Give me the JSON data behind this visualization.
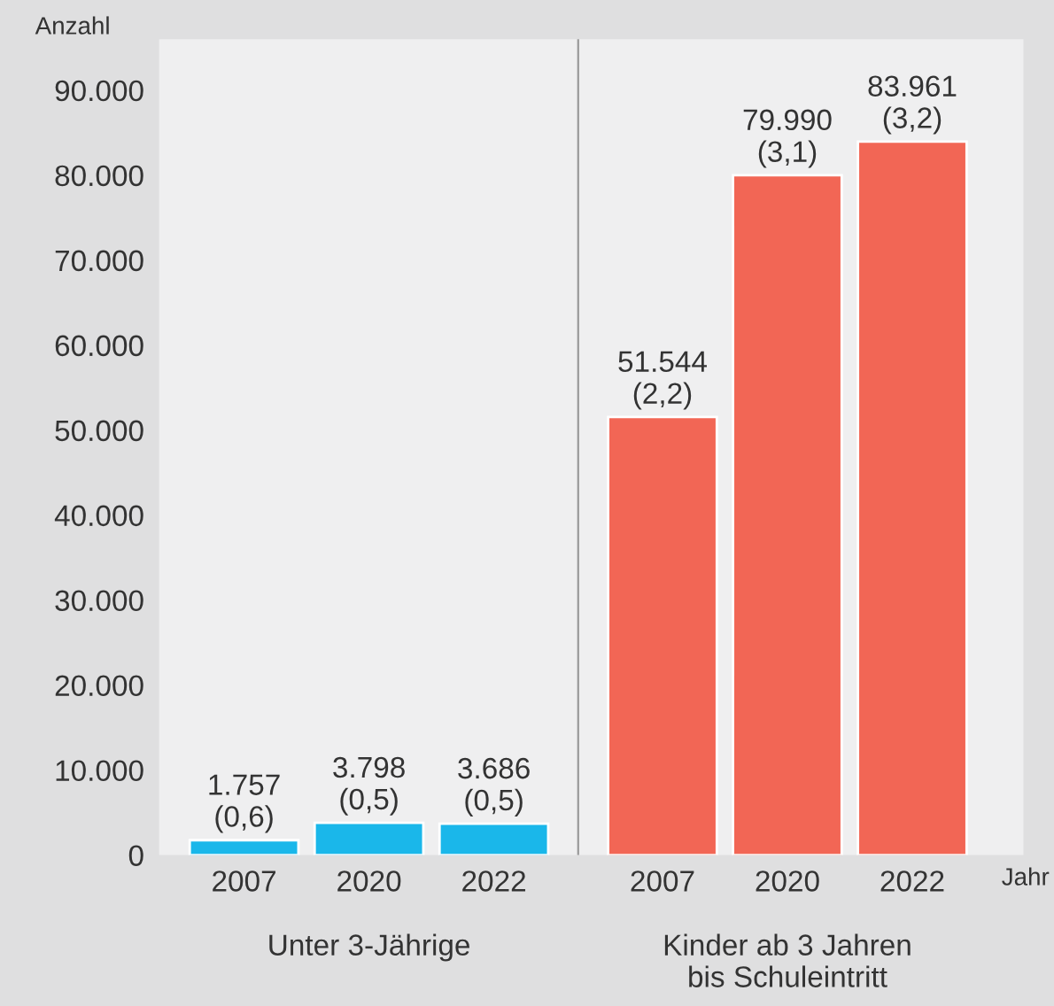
{
  "chart_data": {
    "type": "bar",
    "ylabel": "Anzahl",
    "xlabel": "Jahr",
    "categories": [
      "2007",
      "2020",
      "2022",
      "2007",
      "2020",
      "2022"
    ],
    "values": [
      1757,
      3798,
      3686,
      51544,
      79990,
      83961
    ],
    "colors": [
      "#1ab7ea",
      "#1ab7ea",
      "#1ab7ea",
      "#f26655",
      "#f26655",
      "#f26655"
    ],
    "value_labels": [
      "1.757\n(0,6)",
      "3.798\n(0,5)",
      "3.686\n(0,5)",
      "51.544\n(2,2)",
      "79.990\n(3,1)",
      "83.961\n(3,2)"
    ],
    "annotations": [
      "Unter 3-Jährige",
      "Kinder ab 3 Jahren\nbis Schuleintritt"
    ],
    "ylim": [
      0,
      96000
    ],
    "yticks": [
      0,
      {
        "value": 10000,
        "label": "10.000"
      },
      {
        "value": 20000,
        "label": "20.000"
      },
      {
        "value": 30000,
        "label": "30.000"
      },
      {
        "value": 40000,
        "label": "40.000"
      },
      {
        "value": 50000,
        "label": "50.000"
      },
      {
        "value": 60000,
        "label": "60.000"
      },
      {
        "value": 70000,
        "label": "70.000"
      },
      {
        "value": 80000,
        "label": "80.000"
      },
      {
        "value": 90000,
        "label": "90.000"
      }
    ],
    "grid": false,
    "legend": false
  }
}
